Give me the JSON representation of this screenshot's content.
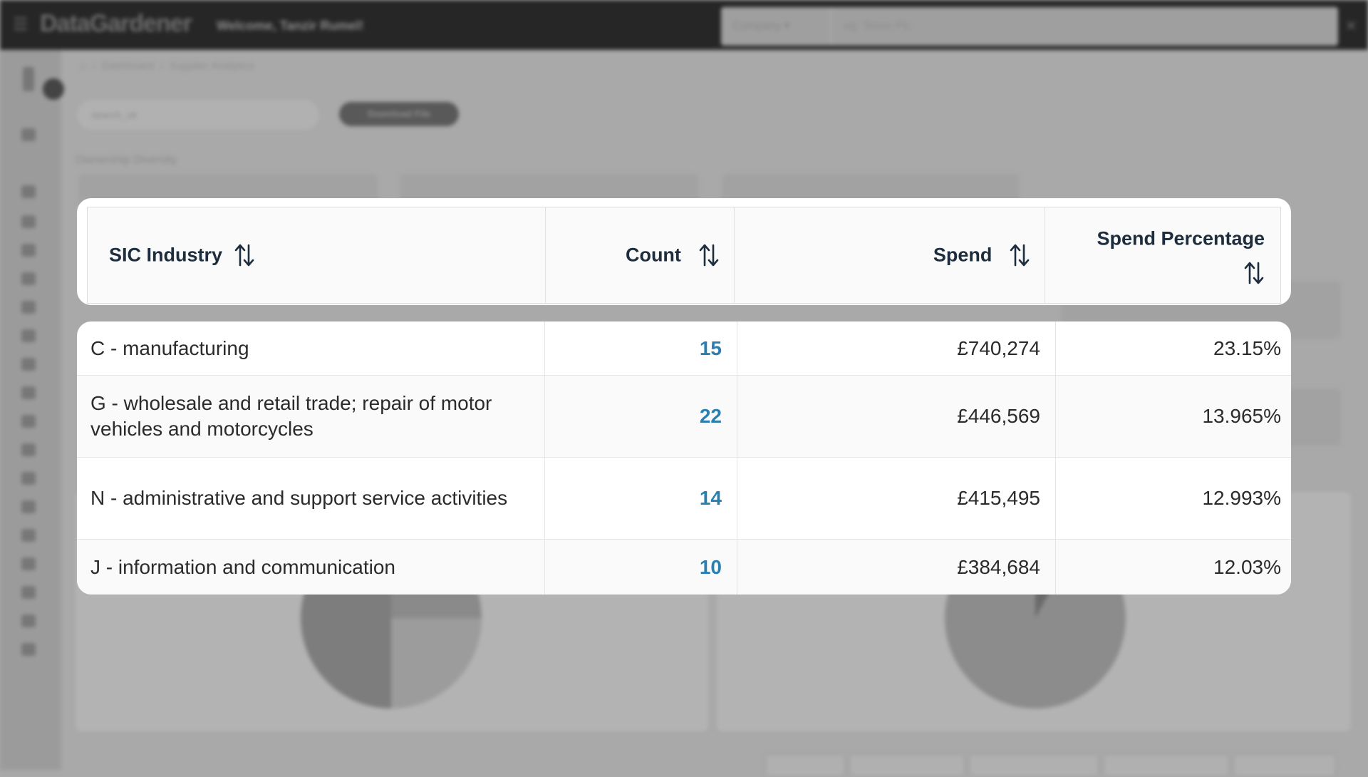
{
  "app": {
    "logo": "DataGardener",
    "welcome": "Welcome, Tanzir Rumel!",
    "search_type": "Company",
    "search_placeholder": "eg: Tesco Plc",
    "breadcrumb": [
      "Dashboard",
      "Supplier Analytics"
    ],
    "file_select": "search_uk",
    "download_label": "Download File",
    "section_title": "Ownership Diversity"
  },
  "table": {
    "headers": {
      "industry": "SIC Industry",
      "count": "Count",
      "spend": "Spend",
      "spend_pct": "Spend Percentage"
    },
    "rows": [
      {
        "industry": "C - manufacturing",
        "count": "15",
        "spend": "£740,274",
        "spend_pct": "23.15%"
      },
      {
        "industry": "G - wholesale and retail trade; repair of motor vehicles and motorcycles",
        "count": "22",
        "spend": "£446,569",
        "spend_pct": "13.965%"
      },
      {
        "industry": "N - administrative and support service activities",
        "count": "14",
        "spend": "£415,495",
        "spend_pct": "12.993%"
      },
      {
        "industry": "J - information and communication",
        "count": "10",
        "spend": "£384,684",
        "spend_pct": "12.03%"
      }
    ]
  },
  "icons": {
    "sort": "sort-arrows-icon",
    "menu": "hamburger-menu-icon",
    "close": "close-icon"
  },
  "colors": {
    "header_text": "#1e2d3d",
    "count_link": "#2a7fb0",
    "topbar": "#262626"
  }
}
